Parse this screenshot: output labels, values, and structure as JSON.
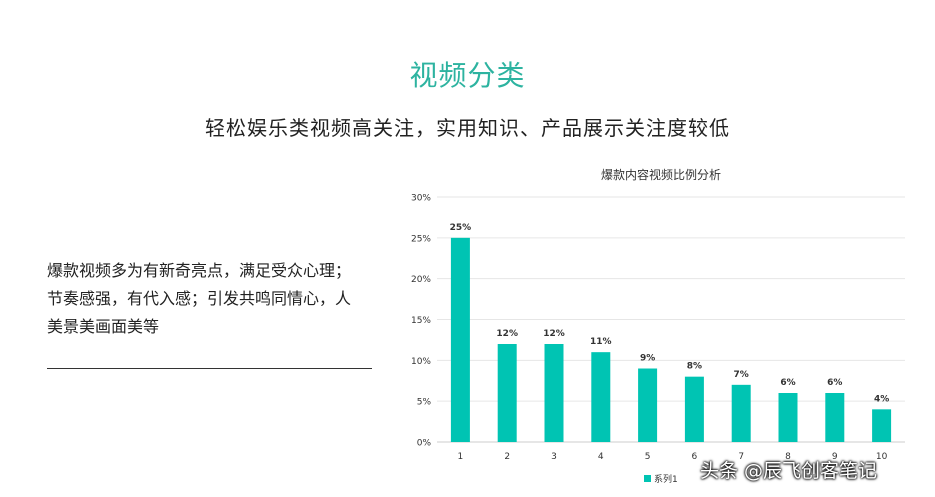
{
  "header": {
    "title": "视频分类",
    "subtitle": "轻松娱乐类视频高关注，实用知识、产品展示关注度较低"
  },
  "description": {
    "lines": [
      "爆款视频多为有新奇亮点，满足受众心理；",
      "节奏感强，有代入感；引发共鸣同情心，人",
      "美景美画面美等"
    ]
  },
  "watermark": "头条 @辰飞创客笔记",
  "chart_data": {
    "type": "bar",
    "title": "爆款内容视频比例分析",
    "categories": [
      "1",
      "2",
      "3",
      "4",
      "5",
      "6",
      "7",
      "8",
      "9",
      "10"
    ],
    "series": [
      {
        "name": "系列1",
        "values": [
          25,
          12,
          12,
          11,
          9,
          8,
          7,
          6,
          6,
          4
        ],
        "color": "#00c4b3"
      }
    ],
    "data_labels": [
      "25%",
      "12%",
      "12%",
      "11%",
      "9%",
      "8%",
      "7%",
      "6%",
      "6%",
      "4%"
    ],
    "y_ticks": [
      "0%",
      "5%",
      "10%",
      "15%",
      "20%",
      "25%",
      "30%"
    ],
    "ylim": [
      0,
      30
    ],
    "grid": true,
    "legend_position": "bottom"
  }
}
